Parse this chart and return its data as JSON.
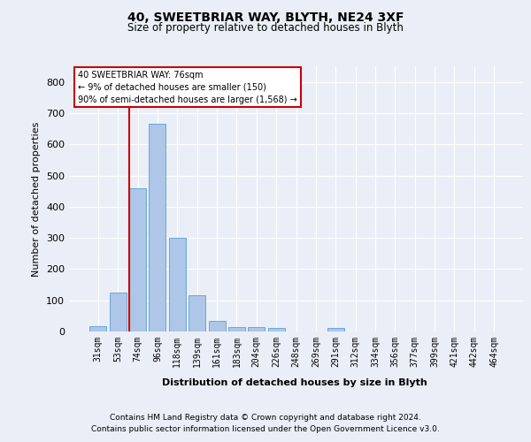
{
  "title": "40, SWEETBRIAR WAY, BLYTH, NE24 3XF",
  "subtitle": "Size of property relative to detached houses in Blyth",
  "xlabel": "Distribution of detached houses by size in Blyth",
  "ylabel": "Number of detached properties",
  "footer_line1": "Contains HM Land Registry data © Crown copyright and database right 2024.",
  "footer_line2": "Contains public sector information licensed under the Open Government Licence v3.0.",
  "bar_labels": [
    "31sqm",
    "53sqm",
    "74sqm",
    "96sqm",
    "118sqm",
    "139sqm",
    "161sqm",
    "183sqm",
    "204sqm",
    "226sqm",
    "248sqm",
    "269sqm",
    "291sqm",
    "312sqm",
    "334sqm",
    "356sqm",
    "377sqm",
    "399sqm",
    "421sqm",
    "442sqm",
    "464sqm"
  ],
  "bar_values": [
    18,
    125,
    460,
    665,
    300,
    115,
    33,
    14,
    14,
    10,
    0,
    0,
    10,
    0,
    0,
    0,
    0,
    0,
    0,
    0,
    0
  ],
  "bar_color": "#aec6e8",
  "bar_edge_color": "#5a9fd4",
  "ylim": [
    0,
    850
  ],
  "yticks": [
    0,
    100,
    200,
    300,
    400,
    500,
    600,
    700,
    800
  ],
  "annotation_text": "40 SWEETBRIAR WAY: 76sqm\n← 9% of detached houses are smaller (150)\n90% of semi-detached houses are larger (1,568) →",
  "annotation_box_color": "#ffffff",
  "annotation_box_edge_color": "#cc0000",
  "property_line_color": "#cc0000",
  "background_color": "#eaeff7",
  "plot_bg_color": "#eaeff7"
}
